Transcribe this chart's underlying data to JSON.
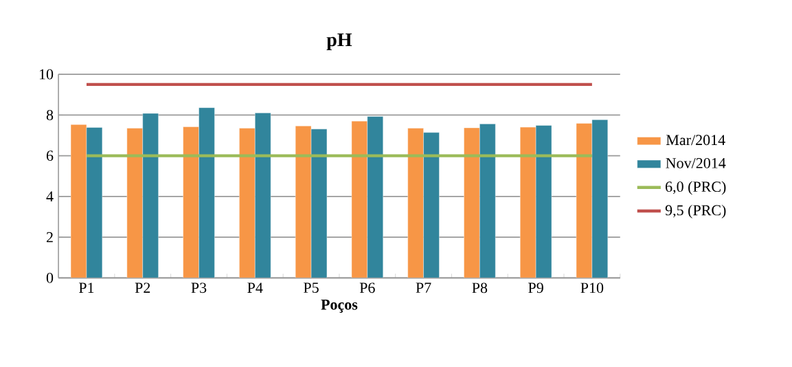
{
  "chart_data": {
    "type": "bar",
    "title": "pH",
    "xlabel": "Poços",
    "categories": [
      "P1",
      "P2",
      "P3",
      "P4",
      "P5",
      "P6",
      "P7",
      "P8",
      "P9",
      "P10"
    ],
    "series": [
      {
        "name": "Mar/2014",
        "color": "#f79646",
        "values": [
          7.53,
          7.35,
          7.42,
          7.35,
          7.46,
          7.7,
          7.35,
          7.37,
          7.4,
          7.59
        ]
      },
      {
        "name": "Nov/2014",
        "color": "#31859c",
        "values": [
          7.39,
          8.08,
          8.36,
          8.1,
          7.31,
          7.93,
          7.14,
          7.56,
          7.49,
          7.77
        ]
      },
      {
        "name": "6,0 (PRC)",
        "type": "line",
        "color": "#9bbb59",
        "values": [
          6,
          6,
          6,
          6,
          6,
          6,
          6,
          6,
          6,
          6
        ]
      },
      {
        "name": "9,5 (PRC)",
        "type": "line",
        "color": "#c0504d",
        "values": [
          9.5,
          9.5,
          9.5,
          9.5,
          9.5,
          9.5,
          9.5,
          9.5,
          9.5,
          9.5
        ]
      }
    ],
    "ylim": [
      0,
      10
    ],
    "yticks": [
      0,
      2,
      4,
      6,
      8,
      10
    ],
    "grid": "y",
    "legend": "right"
  }
}
